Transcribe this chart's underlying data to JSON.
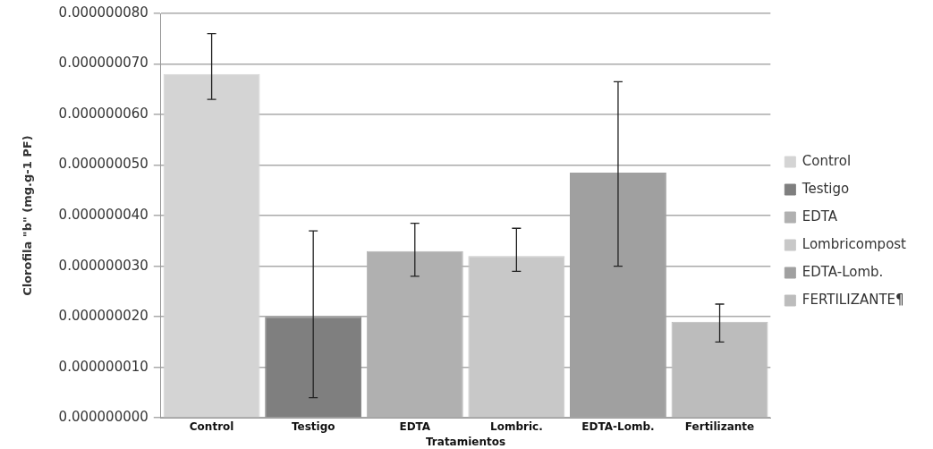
{
  "chart_data": {
    "type": "bar",
    "xlabel": "Tratamientos",
    "ylabel": "Clorofila \"b\" (mg.g-1 PF)",
    "categories": [
      "Control",
      "Testigo",
      "EDTA",
      "Lombric.",
      "EDTA-Lomb.",
      "Fertilizante"
    ],
    "series": [
      {
        "name": "Control",
        "color": "#d4d4d4",
        "values": [
          6.8e-08,
          null,
          null,
          null,
          null,
          null
        ],
        "errors": [
          [
            6.3e-08,
            7.6e-08
          ],
          null,
          null,
          null,
          null,
          null
        ]
      },
      {
        "name": "Testigo",
        "color": "#7f7f7f",
        "values": [
          null,
          2e-08,
          null,
          null,
          null,
          null
        ],
        "errors": [
          null,
          [
            4e-09,
            3.7e-08
          ],
          null,
          null,
          null,
          null
        ]
      },
      {
        "name": "EDTA",
        "color": "#b0b0b0",
        "values": [
          null,
          null,
          3.3e-08,
          null,
          null,
          null
        ],
        "errors": [
          null,
          null,
          [
            2.8e-08,
            3.85e-08
          ],
          null,
          null,
          null
        ]
      },
      {
        "name": "Lombricompost",
        "color": "#c8c8c8",
        "values": [
          null,
          null,
          null,
          3.2e-08,
          null,
          null
        ],
        "errors": [
          null,
          null,
          null,
          [
            2.9e-08,
            3.75e-08
          ],
          null,
          null
        ]
      },
      {
        "name": "EDTA-Lomb.",
        "color": "#a0a0a0",
        "values": [
          null,
          null,
          null,
          null,
          4.85e-08,
          null
        ],
        "errors": [
          null,
          null,
          null,
          null,
          [
            3e-08,
            6.65e-08
          ],
          null
        ]
      },
      {
        "name": "FERTILIZANTE¶",
        "color": "#bcbcbc",
        "values": [
          null,
          null,
          null,
          null,
          null,
          1.9e-08
        ],
        "errors": [
          null,
          null,
          null,
          null,
          null,
          [
            1.5e-08,
            2.25e-08
          ]
        ]
      }
    ],
    "ylim": [
      0,
      8e-08
    ],
    "yticks": [
      {
        "value": 0,
        "label": "0.000000000"
      },
      {
        "value": 1e-08,
        "label": "0.000000010"
      },
      {
        "value": 2e-08,
        "label": "0.000000020"
      },
      {
        "value": 3e-08,
        "label": "0.000000030"
      },
      {
        "value": 4e-08,
        "label": "0.000000040"
      },
      {
        "value": 5e-08,
        "label": "0.000000050"
      },
      {
        "value": 6e-08,
        "label": "0.000000060"
      },
      {
        "value": 7e-08,
        "label": "0.000000070"
      },
      {
        "value": 8e-08,
        "label": "0.000000080"
      }
    ],
    "grid": "y",
    "legend": "right"
  }
}
